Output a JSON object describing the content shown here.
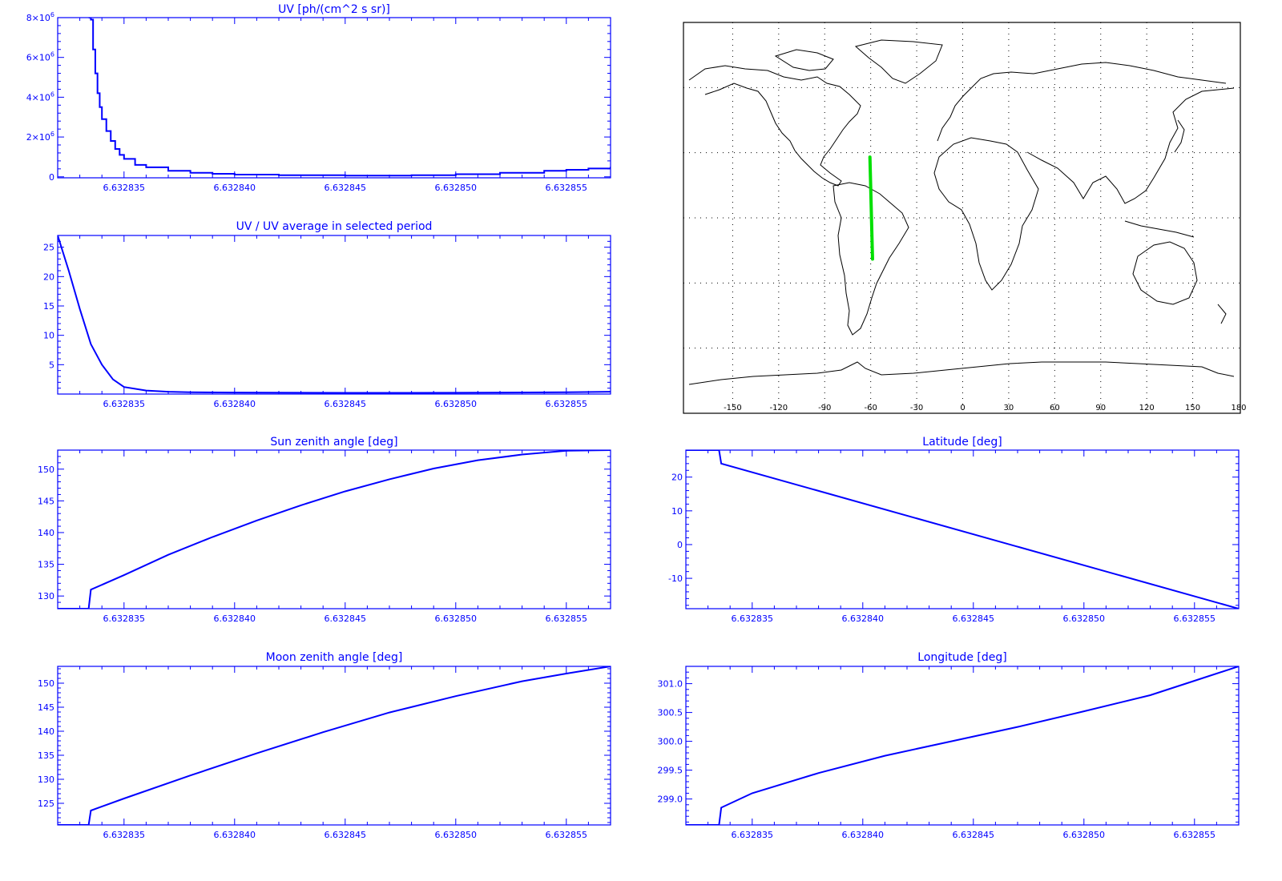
{
  "colors": {
    "axis": "#0000ff",
    "series": "#0000ff",
    "track": "#00e000",
    "map_frame": "#000000",
    "coastline": "#000000",
    "background": "#ffffff"
  },
  "chart_data": [
    {
      "id": "uv",
      "type": "line",
      "title": "UV [ph/(cm^2 s sr)]",
      "xlim": [
        6.632832,
        6.632857
      ],
      "ylim": [
        -50000,
        8000000
      ],
      "xticks": [
        6.632835,
        6.63284,
        6.632845,
        6.63285,
        6.632855
      ],
      "xtick_labels": [
        "6.632835",
        "6.632840",
        "6.632845",
        "6.632850",
        "6.632855"
      ],
      "yticks": [
        0,
        2000000,
        4000000,
        6000000,
        8000000
      ],
      "ytick_labels": [
        {
          "mantissa": "0",
          "exp": ""
        },
        {
          "mantissa": "2×10",
          "exp": "6"
        },
        {
          "mantissa": "4×10",
          "exp": "6"
        },
        {
          "mantissa": "6×10",
          "exp": "6"
        },
        {
          "mantissa": "8×10",
          "exp": "6"
        }
      ],
      "step": true,
      "series": [
        {
          "x": [
            6.6328334,
            6.6328335,
            6.6328336,
            6.6328337,
            6.6328338,
            6.6328339,
            6.632834,
            6.6328342,
            6.6328344,
            6.6328346,
            6.6328348,
            6.632835,
            6.6328355,
            6.632836,
            6.632837,
            6.632838,
            6.632839,
            6.63284,
            6.632842,
            6.632845,
            6.632848,
            6.63285,
            6.632852,
            6.632854,
            6.632855,
            6.632856,
            6.632857
          ],
          "y": [
            8000000,
            7900000,
            6400000,
            5200000,
            4200000,
            3500000,
            2900000,
            2300000,
            1800000,
            1400000,
            1100000,
            900000,
            600000,
            480000,
            300000,
            200000,
            150000,
            110000,
            80000,
            60000,
            80000,
            130000,
            200000,
            300000,
            350000,
            420000,
            500000
          ]
        }
      ]
    },
    {
      "id": "uv-ratio",
      "type": "line",
      "title": "UV / UV average in selected period",
      "xlim": [
        6.632832,
        6.632857
      ],
      "ylim": [
        0,
        27
      ],
      "xticks": [
        6.632835,
        6.63284,
        6.632845,
        6.63285,
        6.632855
      ],
      "xtick_labels": [
        "6.632835",
        "6.632840",
        "6.632845",
        "6.632850",
        "6.632855"
      ],
      "yticks": [
        5,
        10,
        15,
        20,
        25
      ],
      "ytick_labels": [
        "5",
        "10",
        "15",
        "20",
        "25"
      ],
      "series": [
        {
          "x": [
            6.632832,
            6.6328325,
            6.632833,
            6.6328335,
            6.632834,
            6.6328345,
            6.632835,
            6.632836,
            6.632837,
            6.632838,
            6.63284,
            6.632845,
            6.63285,
            6.632855,
            6.632857
          ],
          "y": [
            27,
            21,
            14.5,
            8.5,
            5,
            2.5,
            1.2,
            0.6,
            0.4,
            0.3,
            0.25,
            0.2,
            0.22,
            0.3,
            0.4
          ]
        }
      ]
    },
    {
      "id": "sun-zenith",
      "type": "line",
      "title": "Sun zenith angle [deg]",
      "xlim": [
        6.632832,
        6.632857
      ],
      "ylim": [
        128,
        153
      ],
      "xticks": [
        6.632835,
        6.63284,
        6.632845,
        6.63285,
        6.632855
      ],
      "xtick_labels": [
        "6.632835",
        "6.632840",
        "6.632845",
        "6.632850",
        "6.632855"
      ],
      "yticks": [
        130,
        135,
        140,
        145,
        150
      ],
      "ytick_labels": [
        "130",
        "135",
        "140",
        "145",
        "150"
      ],
      "series": [
        {
          "x": [
            6.632832,
            6.632833,
            6.6328334,
            6.6328335,
            6.632835,
            6.632837,
            6.632839,
            6.632841,
            6.632843,
            6.632845,
            6.632847,
            6.632849,
            6.632851,
            6.632853,
            6.632855,
            6.632857
          ],
          "y": [
            128,
            128,
            128,
            131,
            133.3,
            136.5,
            139.3,
            141.9,
            144.3,
            146.5,
            148.4,
            150.1,
            151.4,
            152.3,
            152.9,
            153
          ]
        }
      ]
    },
    {
      "id": "moon-zenith",
      "type": "line",
      "title": "Moon zenith angle [deg]",
      "xlim": [
        6.632832,
        6.632857
      ],
      "ylim": [
        120.5,
        153.5
      ],
      "xticks": [
        6.632835,
        6.63284,
        6.632845,
        6.63285,
        6.632855
      ],
      "xtick_labels": [
        "6.632835",
        "6.632840",
        "6.632845",
        "6.632850",
        "6.632855"
      ],
      "yticks": [
        125,
        130,
        135,
        140,
        145,
        150
      ],
      "ytick_labels": [
        "125",
        "130",
        "135",
        "140",
        "145",
        "150"
      ],
      "series": [
        {
          "x": [
            6.632832,
            6.632833,
            6.6328334,
            6.6328335,
            6.632835,
            6.632838,
            6.632841,
            6.632844,
            6.632847,
            6.63285,
            6.632853,
            6.632855,
            6.632857
          ],
          "y": [
            120.5,
            120.5,
            120.5,
            123.5,
            126,
            130.8,
            135.4,
            139.8,
            143.9,
            147.3,
            150.4,
            152,
            153.5
          ]
        }
      ]
    },
    {
      "id": "latitude",
      "type": "line",
      "title": "Latitude [deg]",
      "xlim": [
        6.632832,
        6.632857
      ],
      "ylim": [
        -19,
        28
      ],
      "xticks": [
        6.632835,
        6.63284,
        6.632845,
        6.63285,
        6.632855
      ],
      "xtick_labels": [
        "6.632835",
        "6.632840",
        "6.632845",
        "6.632850",
        "6.632855"
      ],
      "yticks": [
        -10,
        0,
        10,
        20
      ],
      "ytick_labels": [
        "-10",
        "0",
        "10",
        "20"
      ],
      "series": [
        {
          "x": [
            6.632832,
            6.632833,
            6.6328335,
            6.6328336,
            6.632857
          ],
          "y": [
            28,
            28,
            28,
            24,
            -19
          ]
        }
      ]
    },
    {
      "id": "longitude",
      "type": "line",
      "title": "Longitude [deg]",
      "xlim": [
        6.632832,
        6.632857
      ],
      "ylim": [
        298.55,
        301.3
      ],
      "xticks": [
        6.632835,
        6.63284,
        6.632845,
        6.63285,
        6.632855
      ],
      "xtick_labels": [
        "6.632835",
        "6.632840",
        "6.632845",
        "6.632850",
        "6.632855"
      ],
      "yticks": [
        299,
        299.5,
        300,
        300.5,
        301
      ],
      "ytick_labels": [
        "299.0",
        "299.5",
        "300.0",
        "300.5",
        "301.0"
      ],
      "series": [
        {
          "x": [
            6.632832,
            6.632833,
            6.6328335,
            6.6328336,
            6.632835,
            6.632838,
            6.632841,
            6.632844,
            6.632847,
            6.63285,
            6.632853,
            6.632855,
            6.632857
          ],
          "y": [
            298.55,
            298.55,
            298.55,
            298.85,
            299.1,
            299.45,
            299.75,
            300.0,
            300.25,
            300.52,
            300.8,
            301.05,
            301.3
          ]
        }
      ]
    }
  ],
  "map": {
    "type": "map",
    "xlim": [
      -180,
      180
    ],
    "ylim": [
      -90,
      90
    ],
    "lon_ticks": [
      -150,
      -120,
      -90,
      -60,
      -30,
      0,
      30,
      60,
      90,
      120,
      150,
      180
    ],
    "lon_tick_labels": [
      "-150",
      "-120",
      "-90",
      "-60",
      "-30",
      "0",
      "30",
      "60",
      "90",
      "120",
      "150",
      "180"
    ],
    "lat_grid": [
      -60,
      -30,
      0,
      30,
      60
    ],
    "grid": true,
    "grid_style": "dotted",
    "track": {
      "lon": [
        -60.5,
        -58.8
      ],
      "lat": [
        28,
        -19
      ]
    }
  }
}
